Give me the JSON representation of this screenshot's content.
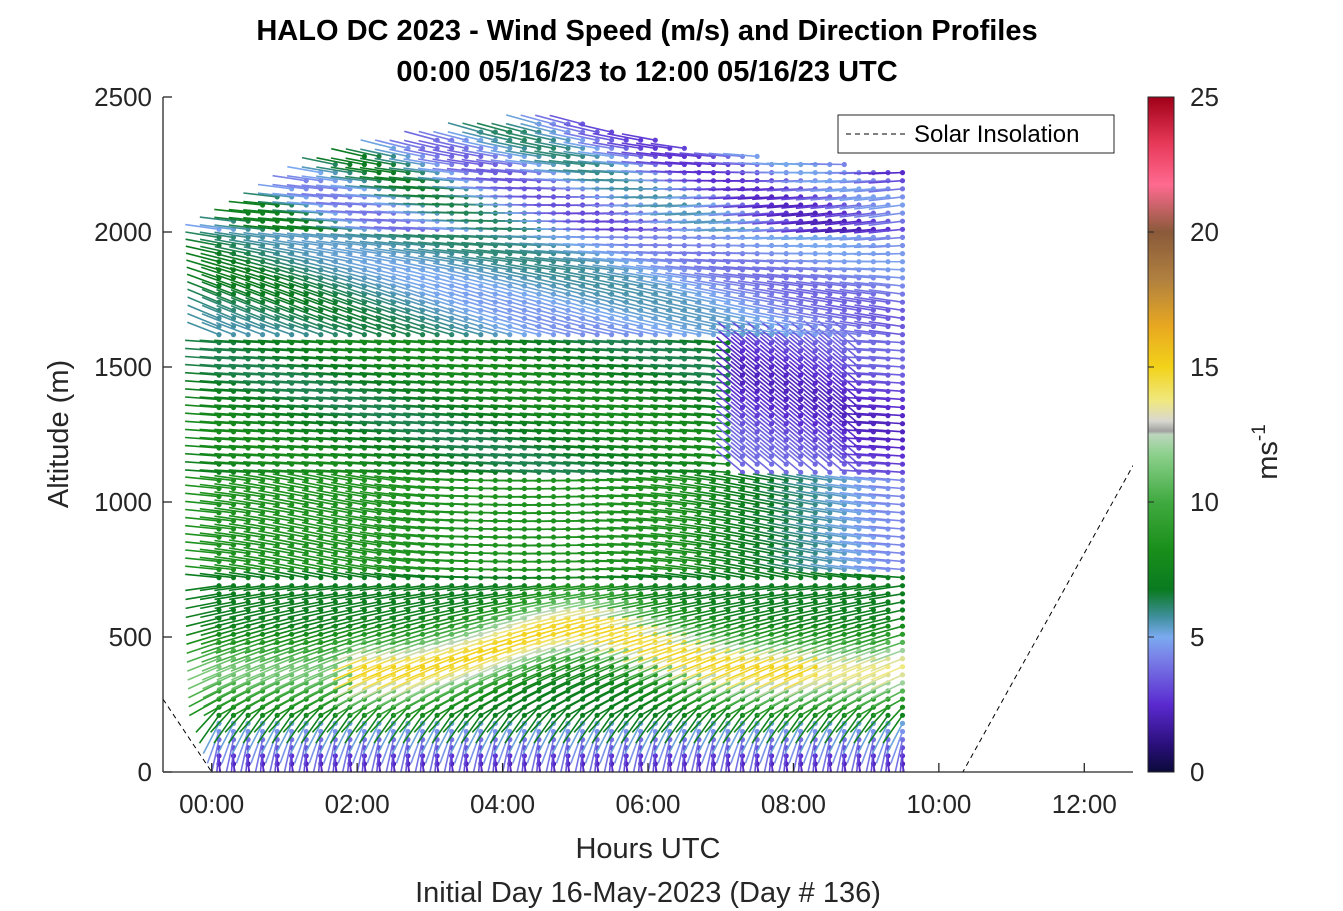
{
  "chart_data": {
    "type": "scatter",
    "title": "HALO DC 2023 - Wind Speed (m/s) and Direction Profiles",
    "subtitle": "00:00 05/16/23 to 12:00 05/16/23  UTC",
    "xlabel": "Hours UTC",
    "xlabel2": "Initial Day 16-May-2023 (Day # 136)",
    "ylabel": "Altitude (m)",
    "xlim": [
      -0.67,
      12.67
    ],
    "ylim": [
      0,
      2500
    ],
    "x_ticks": [
      0,
      2,
      4,
      6,
      8,
      10,
      12
    ],
    "x_tick_labels": [
      "00:00",
      "02:00",
      "04:00",
      "06:00",
      "08:00",
      "10:00",
      "12:00"
    ],
    "y_ticks": [
      0,
      500,
      1000,
      1500,
      2000,
      2500
    ],
    "y_tick_labels": [
      "0",
      "500",
      "1000",
      "1500",
      "2000",
      "2500"
    ],
    "colorbar": {
      "label_base": "ms",
      "label_exponent": "-1",
      "range": [
        0,
        25
      ],
      "ticks": [
        0,
        5,
        10,
        15,
        20,
        25
      ],
      "tick_labels": [
        "0",
        "5",
        "10",
        "15",
        "20",
        "25"
      ]
    },
    "legend": {
      "entries": [
        "Solar Insolation"
      ],
      "placement": "top-right",
      "line_style": "dashed"
    },
    "series": [
      {
        "name": "Solar Insolation",
        "type": "line",
        "style": "dashed",
        "x": [
          -0.67,
          0.0,
          10.33,
          12.67
        ],
        "y": [
          270,
          0,
          0,
          1135
        ]
      }
    ],
    "wind_profiles": {
      "time_start_h": -0.1,
      "time_step_h": 0.2,
      "n_times": 49,
      "alt_start_m": 30,
      "alt_step_m": 30,
      "top_alt_by_time_m": [
        2020,
        2260,
        2360,
        2420,
        2300,
        2260,
        2220
      ],
      "speed_range_mps": [
        0.5,
        16
      ]
    }
  }
}
